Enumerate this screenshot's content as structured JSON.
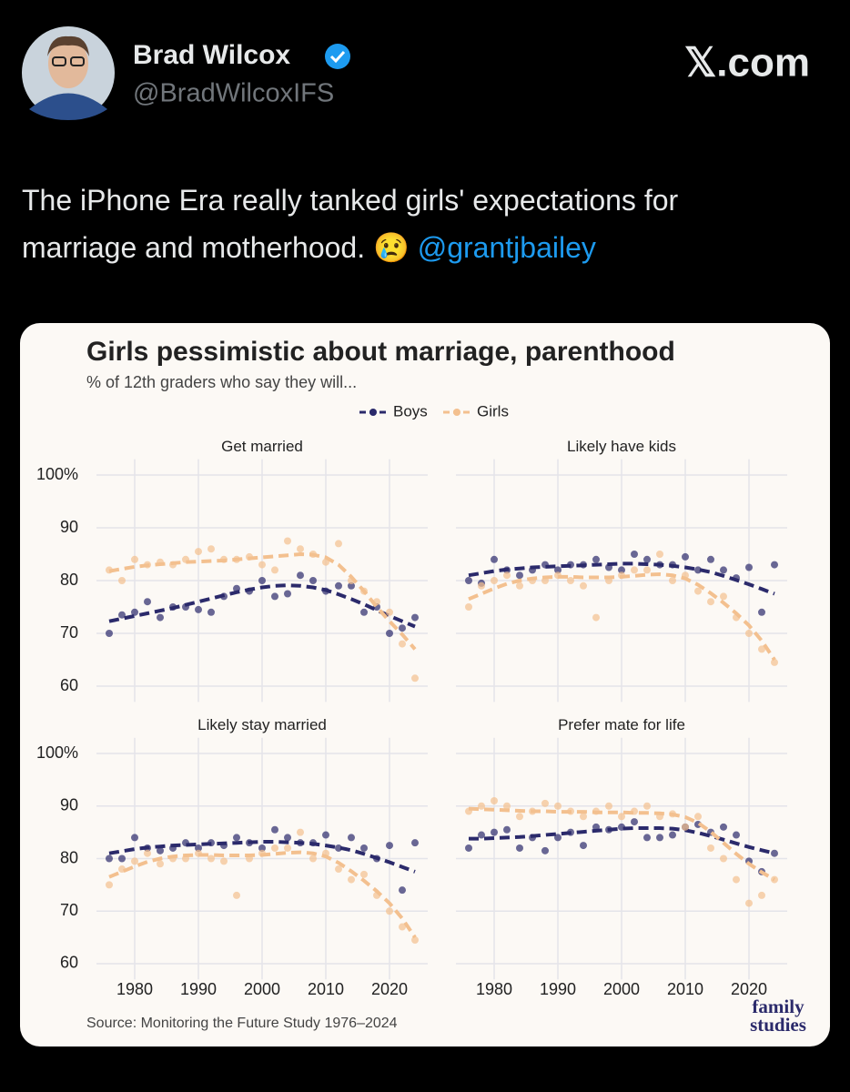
{
  "tweet": {
    "name": "Brad Wilcox",
    "handle": "@BradWilcoxIFS",
    "site": "𝕏.com",
    "text": "The iPhone Era really tanked girls' expectations for marriage and motherhood. 😢",
    "mention": "@grantjbailey"
  },
  "chart_data": {
    "type": "scatter",
    "title": "Girls pessimistic about marriage, parenthood",
    "subtitle": "% of 12th graders who say they will...",
    "source": "Source: Monitoring the Future Study 1976–2024",
    "logo": [
      "family",
      "studies"
    ],
    "legend": [
      {
        "name": "Boys",
        "color": "#2b2a6b"
      },
      {
        "name": "Girls",
        "color": "#f3c08f"
      }
    ],
    "x": [
      1976,
      1978,
      1980,
      1982,
      1984,
      1986,
      1988,
      1990,
      1992,
      1994,
      1996,
      1998,
      2000,
      2002,
      2004,
      2006,
      2008,
      2010,
      2012,
      2014,
      2016,
      2018,
      2020,
      2022,
      2024
    ],
    "xlim": [
      1974,
      2026
    ],
    "xticks": [
      1980,
      1990,
      2000,
      2010,
      2020
    ],
    "ylim": [
      57,
      103
    ],
    "yticks": [
      60,
      70,
      80,
      90,
      {
        "value": 100,
        "label": "100%"
      }
    ],
    "panels": [
      {
        "title": "Get married",
        "series": [
          {
            "values": [
              70,
              73.5,
              74,
              76,
              73,
              75,
              75,
              74.5,
              74,
              77,
              78.5,
              78,
              80,
              77,
              77.5,
              81,
              80,
              78,
              79,
              79,
              74,
              75,
              70,
              71,
              73
            ],
            "trend": [
              72.3,
              72.8,
              73.3,
              73.8,
              74.3,
              74.8,
              75.4,
              76,
              76.6,
              77.2,
              77.8,
              78.3,
              78.7,
              79,
              79.1,
              79,
              78.7,
              78.2,
              77.4,
              76.5,
              75.5,
              74.4,
              73.3,
              72.3,
              71.3
            ]
          },
          {
            "values": [
              82,
              80,
              84,
              83,
              83.5,
              83,
              84,
              85.5,
              86,
              84,
              84,
              84.5,
              83,
              82,
              87.5,
              86,
              85,
              83.5,
              87,
              80,
              78,
              76,
              74,
              68,
              61.5
            ],
            "trend": [
              81.8,
              82.2,
              82.6,
              82.9,
              83.1,
              83.3,
              83.5,
              83.6,
              83.7,
              83.8,
              84,
              84.2,
              84.4,
              84.6,
              84.8,
              85,
              84.9,
              84.4,
              83,
              80.7,
              78,
              75,
              72.3,
              69.8,
              67
            ]
          }
        ]
      },
      {
        "title": "Likely have kids",
        "series": [
          {
            "values": [
              80,
              79.5,
              84,
              82,
              81,
              82,
              83,
              82,
              83,
              83,
              84,
              82.5,
              82,
              85,
              84,
              83,
              83,
              84.5,
              82,
              84,
              82,
              80.5,
              82.5,
              74,
              83
            ],
            "trend": [
              81,
              81.4,
              81.8,
              82.1,
              82.3,
              82.5,
              82.6,
              82.7,
              82.8,
              82.9,
              83,
              83.1,
              83.2,
              83.2,
              83.1,
              83,
              82.8,
              82.5,
              82.1,
              81.6,
              80.9,
              80.1,
              79.3,
              78.4,
              77.5
            ]
          },
          {
            "values": [
              75,
              79,
              80,
              81,
              79,
              80,
              80,
              81,
              80,
              79,
              73,
              80,
              81,
              82,
              82,
              85,
              80,
              81,
              78,
              76,
              77,
              73,
              70,
              67,
              64.5
            ],
            "trend": [
              76.5,
              77.5,
              78.5,
              79.4,
              80,
              80.4,
              80.6,
              80.7,
              80.7,
              80.6,
              80.6,
              80.6,
              80.7,
              80.9,
              81.1,
              81.2,
              81,
              80.4,
              79.2,
              77.6,
              75.8,
              73.8,
              71.5,
              68.6,
              65
            ]
          }
        ]
      },
      {
        "title": "Likely stay married",
        "series": [
          {
            "values": [
              80,
              80,
              84,
              82,
              81.5,
              82,
              83,
              82,
              83,
              82.5,
              84,
              83,
              82,
              85.5,
              84,
              83,
              83,
              84.5,
              82,
              84,
              82,
              80,
              82.5,
              74,
              83
            ],
            "trend": [
              81,
              81.4,
              81.8,
              82.1,
              82.3,
              82.5,
              82.6,
              82.7,
              82.8,
              82.9,
              83,
              83.1,
              83.2,
              83.2,
              83.1,
              83,
              82.8,
              82.5,
              82.1,
              81.6,
              80.9,
              80.1,
              79.3,
              78.4,
              77.5
            ]
          },
          {
            "values": [
              75,
              78,
              79.5,
              81,
              79,
              80,
              80,
              81,
              80,
              79.5,
              73,
              80,
              81,
              82,
              82,
              85,
              80,
              81,
              78,
              76,
              77,
              73,
              70,
              67,
              64.5
            ],
            "trend": [
              76.5,
              77.5,
              78.5,
              79.4,
              80,
              80.4,
              80.6,
              80.7,
              80.7,
              80.6,
              80.6,
              80.6,
              80.7,
              80.9,
              81.1,
              81.2,
              81,
              80.4,
              79.2,
              77.6,
              75.8,
              73.8,
              71.5,
              68.6,
              65
            ]
          }
        ]
      },
      {
        "title": "Prefer mate for life",
        "series": [
          {
            "values": [
              82,
              84.5,
              85,
              85.5,
              82,
              84,
              81.5,
              84,
              85,
              82.5,
              86,
              85.5,
              86,
              87,
              84,
              84,
              84.5,
              86,
              86.5,
              85,
              86,
              84.5,
              79.5,
              77.5,
              81
            ],
            "trend": [
              83.8,
              83.8,
              83.9,
              84,
              84.1,
              84.3,
              84.5,
              84.7,
              84.9,
              85.1,
              85.3,
              85.5,
              85.7,
              85.8,
              85.8,
              85.8,
              85.7,
              85.4,
              84.9,
              84.3,
              83.6,
              82.9,
              82.2,
              81.6,
              81
            ]
          },
          {
            "values": [
              89,
              90,
              91,
              90,
              88,
              89,
              90.5,
              90,
              89,
              88,
              89,
              90,
              88,
              89,
              90,
              88,
              88.5,
              86,
              88,
              82,
              80,
              76,
              71.5,
              73,
              76
            ],
            "trend": [
              89.5,
              89.4,
              89.3,
              89.2,
              89.1,
              89,
              89,
              88.9,
              88.9,
              88.9,
              88.8,
              88.8,
              88.8,
              88.7,
              88.7,
              88.6,
              88.4,
              87.9,
              86.8,
              85.1,
              83,
              80.9,
              79,
              77.4,
              76
            ]
          }
        ]
      }
    ]
  }
}
